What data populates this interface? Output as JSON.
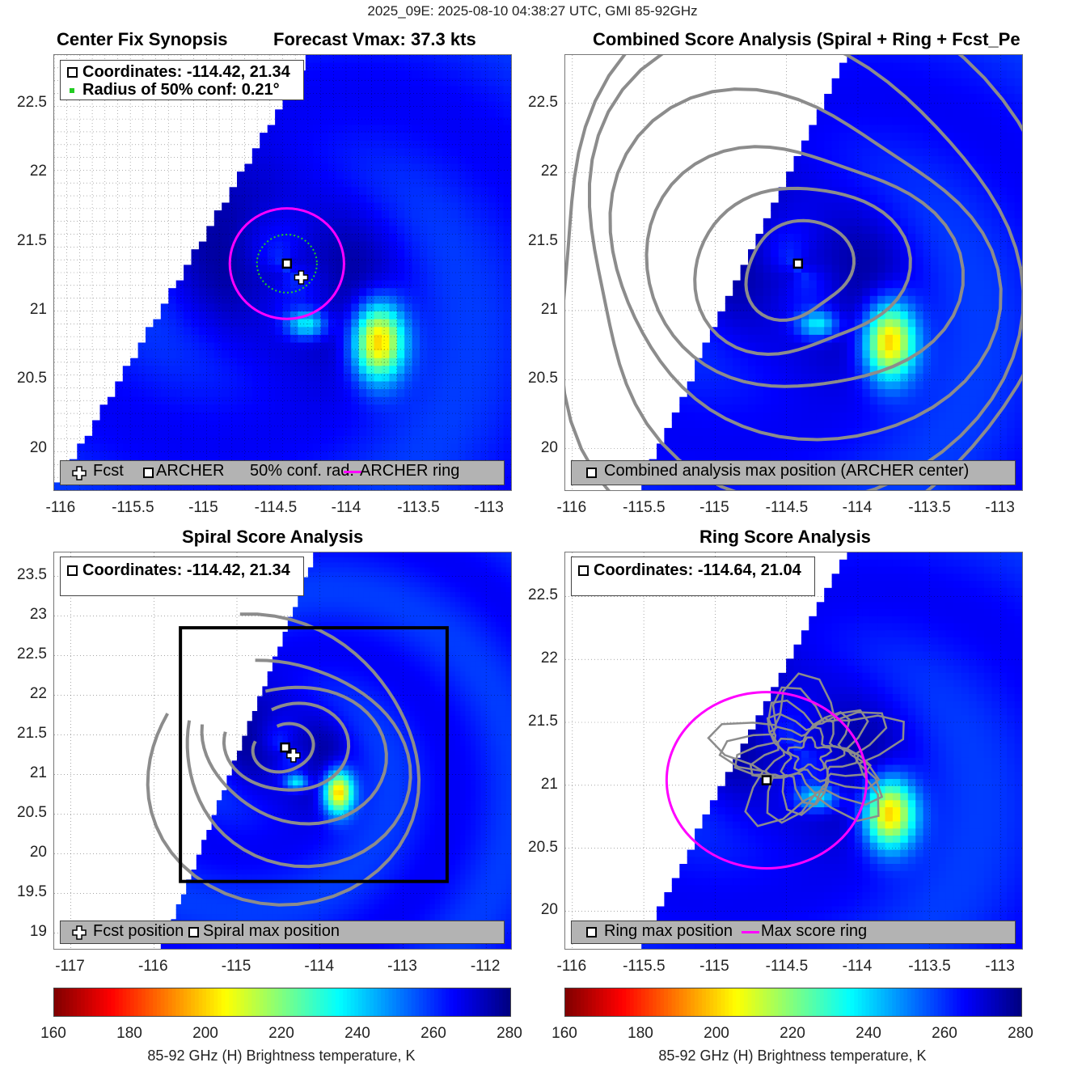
{
  "suptitle": "2025_09E: 2025-08-10 04:38:27 UTC, GMI 85-92GHz",
  "colors": {
    "archer_ring": "#ff00ff",
    "conf_circle": "#22cc22",
    "contour": "#8c8c8c",
    "legend_bg": "#b3b3b3"
  },
  "panels": [
    {
      "title": "Center Fix Synopsis",
      "subtitle": "Forecast Vmax: 37.3 kts",
      "legend_top": [
        "Coordinates: -114.42, 21.34",
        "Radius of 50% conf: 0.21°"
      ],
      "legend_bottom": [
        "Fcst",
        "ARCHER",
        "50% conf. rad.",
        "ARCHER ring"
      ],
      "xticks": [
        "-116",
        "-115.5",
        "-115",
        "-114.5",
        "-114",
        "-113.5",
        "-113"
      ],
      "yticks": [
        "22.5",
        "22",
        "21.5",
        "21",
        "20.5",
        "20"
      ]
    },
    {
      "title": "Combined Score Analysis (Spiral + Ring + Fcst_Pe",
      "legend_bottom": [
        "Combined analysis max position (ARCHER center)"
      ],
      "xticks": [
        "-116",
        "-115.5",
        "-115",
        "-114.5",
        "-114",
        "-113.5",
        "-113"
      ],
      "yticks": [
        "22.5",
        "22",
        "21.5",
        "21",
        "20.5",
        "20"
      ]
    },
    {
      "title": "Spiral Score Analysis",
      "legend_top": [
        "Coordinates: -114.42, 21.34"
      ],
      "legend_bottom": [
        "Fcst position",
        "Spiral max position"
      ],
      "xticks": [
        "-117",
        "-116",
        "-115",
        "-114",
        "-113",
        "-112"
      ],
      "yticks": [
        "23.5",
        "23",
        "22.5",
        "22",
        "21.5",
        "21",
        "20.5",
        "20",
        "19.5",
        "19"
      ]
    },
    {
      "title": "Ring Score Analysis",
      "legend_top": [
        "Coordinates: -114.64, 21.04"
      ],
      "legend_bottom": [
        "Ring max position",
        "Max score ring"
      ],
      "xticks": [
        "-116",
        "-115.5",
        "-115",
        "-114.5",
        "-114",
        "-113.5",
        "-113"
      ],
      "yticks": [
        "22.5",
        "22",
        "21.5",
        "21",
        "20.5",
        "20"
      ]
    }
  ],
  "colorbar": {
    "ticks": [
      "160",
      "180",
      "200",
      "220",
      "240",
      "260",
      "280"
    ],
    "label": "85-92 GHz (H) Brightness temperature, K"
  },
  "chart_data": [
    {
      "type": "heatmap",
      "title": "Center Fix Synopsis",
      "xlim": [
        -116.05,
        -112.85
      ],
      "ylim": [
        19.7,
        22.85
      ],
      "archer_center": [
        -114.42,
        21.34
      ],
      "forecast_position": [
        -114.32,
        21.24
      ],
      "conf_radius_deg": 0.21,
      "archer_ring_radius_deg": 0.4,
      "cold_core": {
        "center": [
          -113.78,
          20.75
        ],
        "min_temp_K": 195
      },
      "swath_edge_west": [
        [
          -116.05,
          19.7
        ],
        [
          -114.25,
          22.85
        ]
      ],
      "colorbar_range": [
        160,
        280
      ],
      "xticks": [
        -116,
        -115.5,
        -115,
        -114.5,
        -114,
        -113.5,
        -113
      ],
      "yticks": [
        20,
        20.5,
        21,
        21.5,
        22,
        22.5
      ]
    },
    {
      "type": "heatmap",
      "title": "Combined Score Analysis (Spiral + Ring + Fcst_Pe",
      "xlim": [
        -116.05,
        -112.85
      ],
      "ylim": [
        19.7,
        22.85
      ],
      "max_position": [
        -114.42,
        21.34
      ],
      "contour_radii_deg": [
        0.35,
        0.65,
        0.95,
        1.25,
        1.55,
        1.85
      ],
      "contour_center": [
        -114.42,
        21.3
      ],
      "colorbar_range": [
        160,
        280
      ]
    },
    {
      "type": "heatmap",
      "title": "Spiral Score Analysis",
      "xlim": [
        -117.2,
        -111.7
      ],
      "ylim": [
        18.8,
        23.8
      ],
      "spiral_max_position": [
        -114.42,
        21.34
      ],
      "forecast_position": [
        -114.32,
        21.24
      ],
      "search_box": {
        "lon": [
          -115.68,
          -112.47
        ],
        "lat": [
          19.65,
          22.85
        ]
      },
      "contour_radii_deg": [
        0.3,
        0.6,
        0.95,
        1.3,
        1.65
      ],
      "colorbar_range": [
        160,
        280
      ]
    },
    {
      "type": "heatmap",
      "title": "Ring Score Analysis",
      "xlim": [
        -116.05,
        -112.85
      ],
      "ylim": [
        19.7,
        22.85
      ],
      "ring_max_position": [
        -114.64,
        21.04
      ],
      "max_score_ring_radius_deg": 0.7,
      "colorbar_range": [
        160,
        280
      ]
    }
  ]
}
